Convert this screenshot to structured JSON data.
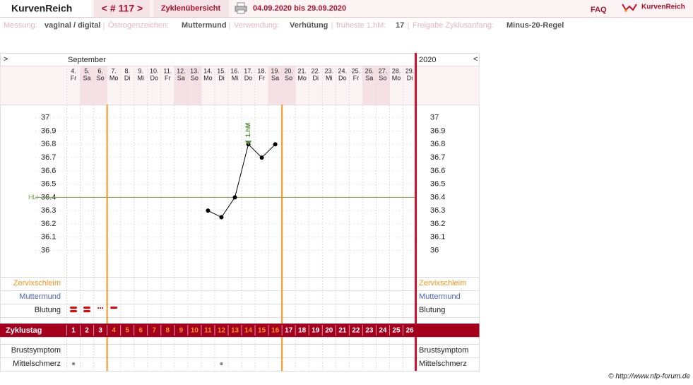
{
  "header": {
    "logo": "KurvenReich",
    "cycle_nav": "< # 117 >",
    "overview": "Zyklenübersicht",
    "range": "04.09.2020 bis 29.09.2020",
    "faq": "FAQ",
    "brand": "KurvenReich"
  },
  "info": [
    {
      "label": "Messung:",
      "value": "vaginal / digital"
    },
    {
      "label": "Östrogenzeichen:",
      "value": "Muttermund"
    },
    {
      "label": "Verwendung:",
      "value": "Verhütung"
    },
    {
      "label": "früheste 1.hM:",
      "value": "17"
    },
    {
      "label": "Freigabe Zyklusanfang:",
      "value": "Minus-20-Regel"
    }
  ],
  "calendar": {
    "nav_left": ">",
    "nav_right": "<",
    "month": "September",
    "year": "2020",
    "days": [
      {
        "date": "4.",
        "weekday": "Fr",
        "weekend": false
      },
      {
        "date": "5.",
        "weekday": "Sa",
        "weekend": true
      },
      {
        "date": "6.",
        "weekday": "So",
        "weekend": true
      },
      {
        "date": "7.",
        "weekday": "Mo",
        "weekend": false
      },
      {
        "date": "8.",
        "weekday": "Di",
        "weekend": false
      },
      {
        "date": "9.",
        "weekday": "Mi",
        "weekend": false
      },
      {
        "date": "10.",
        "weekday": "Do",
        "weekend": false
      },
      {
        "date": "11.",
        "weekday": "Fr",
        "weekend": false
      },
      {
        "date": "12.",
        "weekday": "Sa",
        "weekend": true
      },
      {
        "date": "13.",
        "weekday": "So",
        "weekend": true
      },
      {
        "date": "14.",
        "weekday": "Mo",
        "weekend": false
      },
      {
        "date": "15.",
        "weekday": "Di",
        "weekend": false
      },
      {
        "date": "16.",
        "weekday": "Mi",
        "weekend": false
      },
      {
        "date": "17.",
        "weekday": "Do",
        "weekend": false
      },
      {
        "date": "18.",
        "weekday": "Fr",
        "weekend": false
      },
      {
        "date": "19.",
        "weekday": "Sa",
        "weekend": true
      },
      {
        "date": "20.",
        "weekday": "So",
        "weekend": true
      },
      {
        "date": "21.",
        "weekday": "Mo",
        "weekend": false
      },
      {
        "date": "22.",
        "weekday": "Di",
        "weekend": false
      },
      {
        "date": "23.",
        "weekday": "Mi",
        "weekend": false
      },
      {
        "date": "24.",
        "weekday": "Do",
        "weekend": false
      },
      {
        "date": "25.",
        "weekday": "Fr",
        "weekend": false
      },
      {
        "date": "26.",
        "weekday": "Sa",
        "weekend": true
      },
      {
        "date": "27.",
        "weekday": "So",
        "weekend": true
      },
      {
        "date": "28.",
        "weekday": "Mo",
        "weekend": false
      },
      {
        "date": "29.",
        "weekday": "Di",
        "weekend": false
      }
    ]
  },
  "temperature": {
    "ylim": [
      35.8,
      37.1
    ],
    "yticks": [
      36,
      36.1,
      36.2,
      36.3,
      36.4,
      36.5,
      36.6,
      36.7,
      36.8,
      36.9,
      37
    ],
    "values": [
      null,
      null,
      null,
      null,
      null,
      null,
      null,
      null,
      null,
      null,
      36.3,
      36.25,
      36.4,
      36.8,
      36.7,
      36.8,
      null,
      null,
      null,
      null,
      null,
      null,
      null,
      null,
      null,
      null
    ],
    "coverline": 36.4,
    "coverline_label": "HLi",
    "first_high_label": "1.hM",
    "first_high_day": 14
  },
  "phase_boundaries_after_day": [
    3,
    16
  ],
  "rows": {
    "cervical_mucus": "Zervixschleim",
    "cervix": "Muttermund",
    "bleeding": "Blutung",
    "cycle_day": "Zyklustag",
    "breast": "Brustsymptom",
    "mittelschmerz": "Mittelschmerz"
  },
  "bleeding": [
    3,
    3,
    1,
    2
  ],
  "cycle_days": [
    1,
    2,
    3,
    4,
    5,
    6,
    7,
    8,
    9,
    10,
    11,
    12,
    13,
    14,
    15,
    16,
    17,
    18,
    19,
    20,
    21,
    22,
    23,
    24,
    25,
    26
  ],
  "mittelschmerz_days": [
    1,
    12
  ],
  "footer": "© http://www.nfp-forum.de"
}
